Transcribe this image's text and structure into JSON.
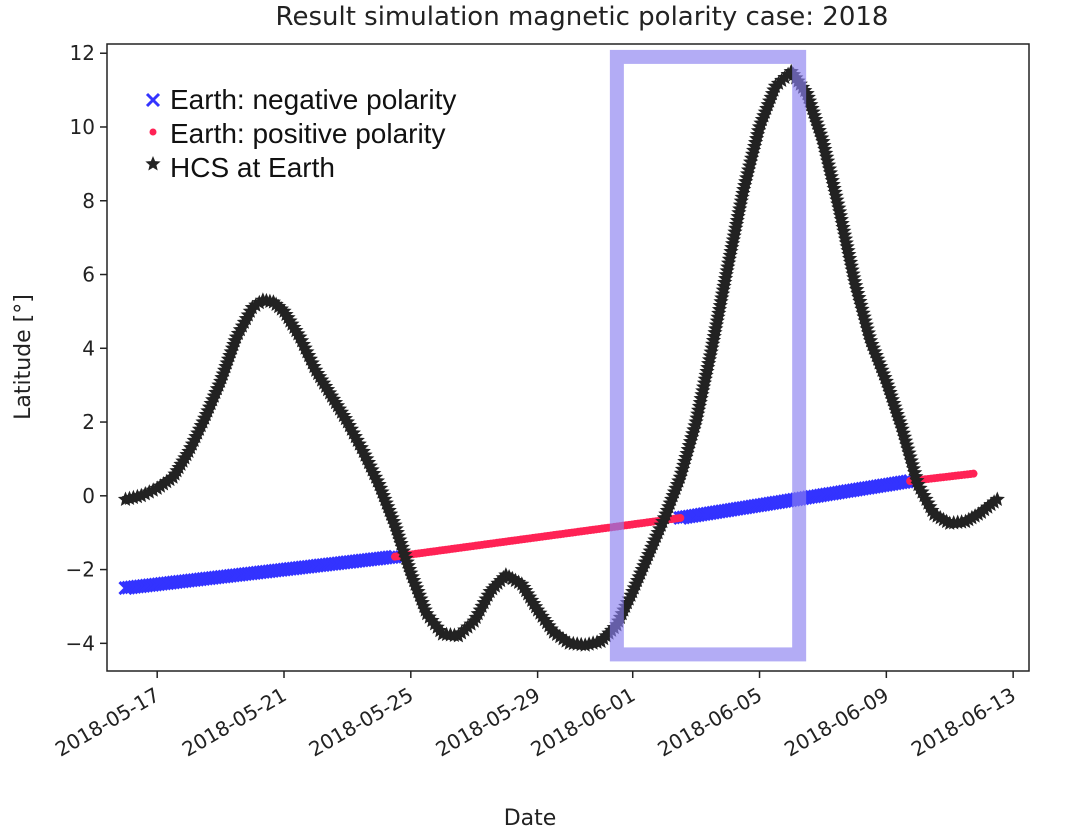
{
  "chart_data": {
    "type": "scatter",
    "title": "Result simulation magnetic polarity case: 2018",
    "xlabel": "Date",
    "ylabel": "Latitude [°]",
    "x_range": [
      "2018-05-15T10:00",
      "2018-06-13T12:00"
    ],
    "ylim": [
      -4.75,
      12.25
    ],
    "yticks": [
      -4,
      -2,
      0,
      2,
      4,
      6,
      8,
      10,
      12
    ],
    "xticks": [
      "2018-05-17",
      "2018-05-21",
      "2018-05-25",
      "2018-05-29",
      "2018-06-01",
      "2018-06-05",
      "2018-06-09",
      "2018-06-13"
    ],
    "legend_position": "top-left",
    "grid": false,
    "colors": {
      "negative": "#3333ff",
      "positive": "#ff2255",
      "hcs": "#222222",
      "highlight": "#8a7ff0"
    },
    "series": [
      {
        "name": "Earth: negative polarity",
        "marker": "x",
        "color": "#3333ff",
        "segments": [
          [
            [
              "2018-05-16",
              -2.5
            ],
            [
              "2018-05-24T12:00",
              -1.65
            ]
          ],
          [
            [
              "2018-06-02T12:00",
              -0.6
            ],
            [
              "2018-06-09T18:00",
              0.4
            ]
          ]
        ]
      },
      {
        "name": "Earth: positive polarity",
        "marker": "dot",
        "color": "#ff2255",
        "segments": [
          [
            [
              "2018-05-24T12:00",
              -1.65
            ],
            [
              "2018-06-02T12:00",
              -0.6
            ]
          ],
          [
            [
              "2018-06-09T18:00",
              0.4
            ],
            [
              "2018-06-11T18:00",
              0.6
            ]
          ]
        ]
      },
      {
        "name": "HCS at Earth",
        "marker": "star",
        "color": "#222222",
        "points": [
          [
            "2018-05-16",
            -0.1
          ],
          [
            "2018-05-16T12:00",
            0.0
          ],
          [
            "2018-05-17",
            0.2
          ],
          [
            "2018-05-17T12:00",
            0.5
          ],
          [
            "2018-05-18",
            1.2
          ],
          [
            "2018-05-18T12:00",
            2.1
          ],
          [
            "2018-05-19",
            3.1
          ],
          [
            "2018-05-19T12:00",
            4.3
          ],
          [
            "2018-05-20",
            5.1
          ],
          [
            "2018-05-20T08:00",
            5.3
          ],
          [
            "2018-05-20T16:00",
            5.25
          ],
          [
            "2018-05-21",
            5.0
          ],
          [
            "2018-05-21T12:00",
            4.3
          ],
          [
            "2018-05-22",
            3.4
          ],
          [
            "2018-05-22T12:00",
            2.7
          ],
          [
            "2018-05-23",
            2.0
          ],
          [
            "2018-05-23T12:00",
            1.2
          ],
          [
            "2018-05-24",
            0.3
          ],
          [
            "2018-05-24T12:00",
            -0.8
          ],
          [
            "2018-05-25",
            -2.1
          ],
          [
            "2018-05-25T12:00",
            -3.2
          ],
          [
            "2018-05-26",
            -3.75
          ],
          [
            "2018-05-26T12:00",
            -3.8
          ],
          [
            "2018-05-27",
            -3.4
          ],
          [
            "2018-05-27T12:00",
            -2.6
          ],
          [
            "2018-05-28",
            -2.15
          ],
          [
            "2018-05-28T12:00",
            -2.4
          ],
          [
            "2018-05-29",
            -3.1
          ],
          [
            "2018-05-29T12:00",
            -3.7
          ],
          [
            "2018-05-30",
            -4.0
          ],
          [
            "2018-05-30T12:00",
            -4.05
          ],
          [
            "2018-05-31",
            -3.95
          ],
          [
            "2018-05-31T12:00",
            -3.5
          ],
          [
            "2018-06-01",
            -2.6
          ],
          [
            "2018-06-01T12:00",
            -1.6
          ],
          [
            "2018-06-02",
            -0.6
          ],
          [
            "2018-06-02T12:00",
            0.5
          ],
          [
            "2018-06-03",
            2.0
          ],
          [
            "2018-06-03T12:00",
            4.0
          ],
          [
            "2018-06-04",
            6.2
          ],
          [
            "2018-06-04T12:00",
            8.3
          ],
          [
            "2018-06-05",
            10.0
          ],
          [
            "2018-06-05T12:00",
            11.1
          ],
          [
            "2018-06-06",
            11.5
          ],
          [
            "2018-06-06T12:00",
            10.9
          ],
          [
            "2018-06-07",
            9.6
          ],
          [
            "2018-06-07T12:00",
            7.8
          ],
          [
            "2018-06-08",
            5.8
          ],
          [
            "2018-06-08T12:00",
            4.2
          ],
          [
            "2018-06-09",
            3.1
          ],
          [
            "2018-06-09T12:00",
            1.8
          ],
          [
            "2018-06-10",
            0.3
          ],
          [
            "2018-06-10T12:00",
            -0.5
          ],
          [
            "2018-06-11",
            -0.75
          ],
          [
            "2018-06-11T12:00",
            -0.7
          ],
          [
            "2018-06-12",
            -0.45
          ],
          [
            "2018-06-12T12:00",
            -0.1
          ]
        ]
      }
    ],
    "highlight_box": {
      "x": [
        "2018-05-31T12:00",
        "2018-06-06T06:00"
      ],
      "y": [
        -4.3,
        11.9
      ]
    }
  }
}
